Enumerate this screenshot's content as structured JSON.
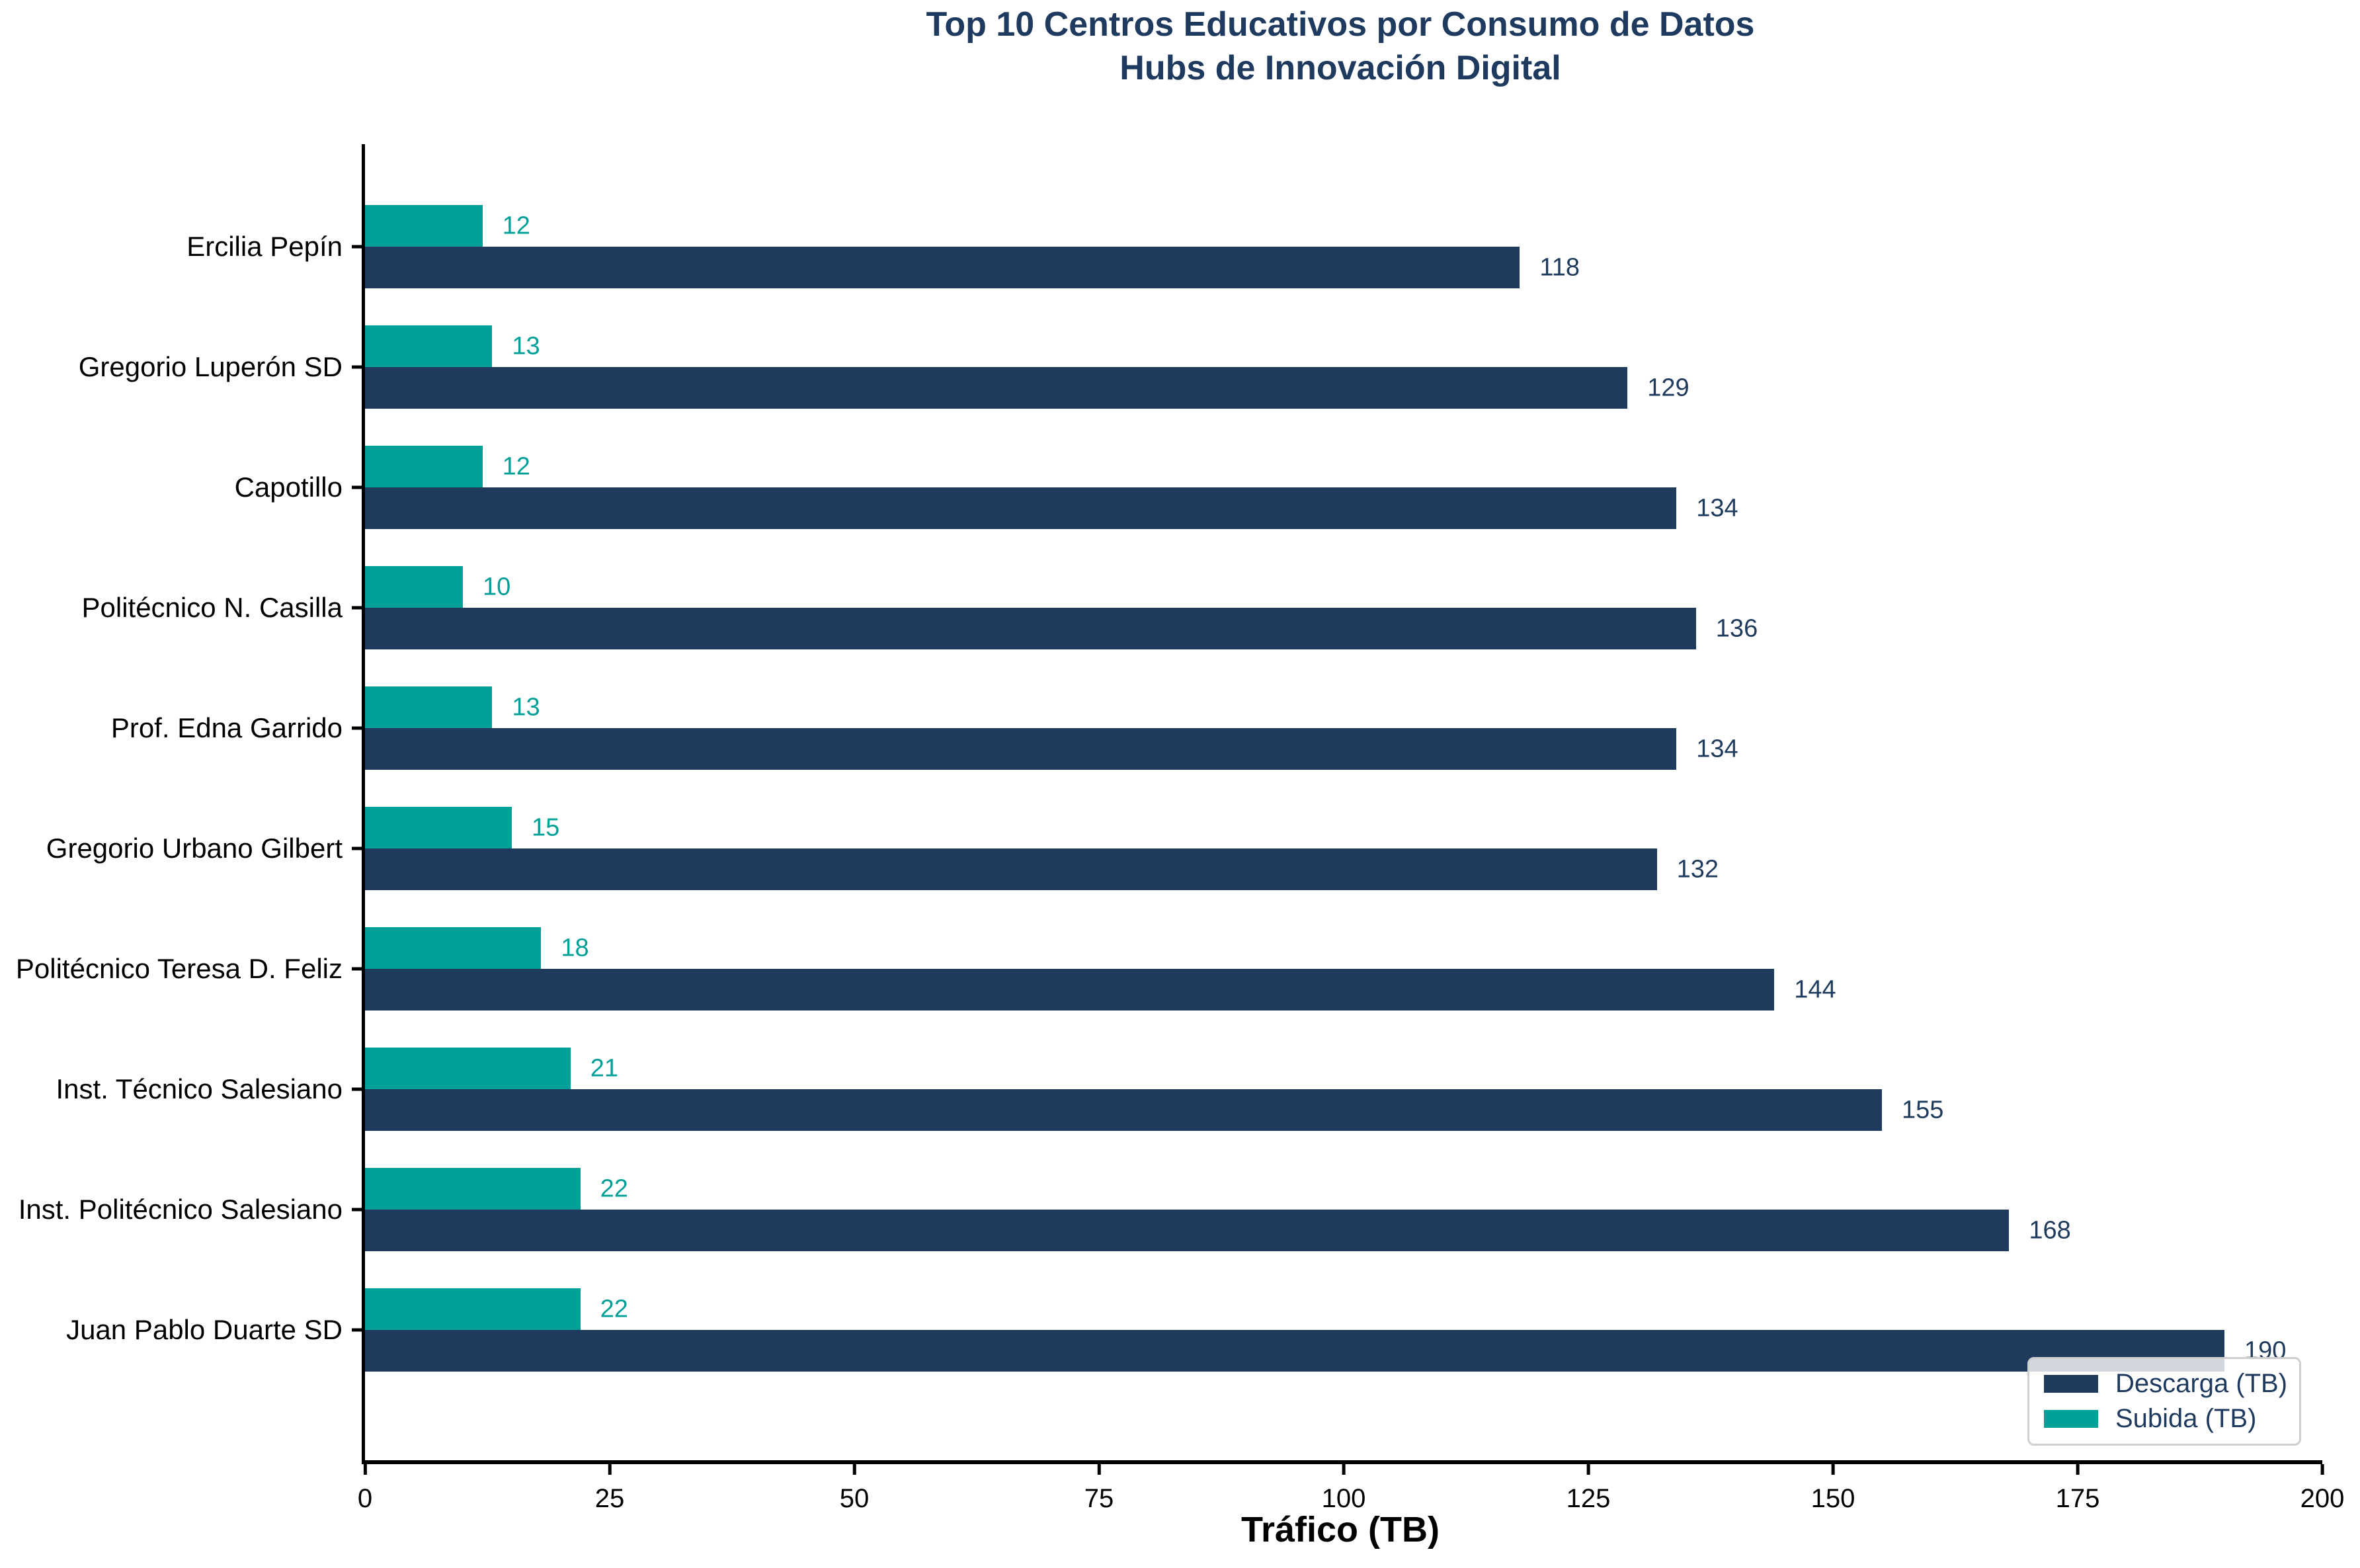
{
  "title": {
    "line1": "Top 10 Centros Educativos por Consumo de Datos",
    "line2": "Hubs de Innovación Digital"
  },
  "colors": {
    "descarga": "#1e3a5c",
    "subida": "#00a098",
    "title_text": "#1f3a5f",
    "legend_text": "#1f3a5f",
    "axis": "#000000",
    "legend_border": "#cfcfcf"
  },
  "x_axis": {
    "label": "Tráfico (TB)",
    "ticks": [
      0,
      25,
      50,
      75,
      100,
      125,
      150,
      175,
      200
    ],
    "max": 200
  },
  "legend": {
    "items": [
      {
        "label": "Descarga (TB)",
        "color_key": "descarga"
      },
      {
        "label": "Subida (TB)",
        "color_key": "subida"
      }
    ]
  },
  "chart_data": {
    "type": "bar",
    "orientation": "horizontal",
    "title": "Top 10 Centros Educativos por Consumo de Datos — Hubs de Innovación Digital",
    "xlabel": "Tráfico (TB)",
    "ylabel": "",
    "xlim": [
      0,
      200
    ],
    "grid": false,
    "legend_position": "lower right",
    "categories": [
      "Ercilia Pepín",
      "Gregorio Luperón SD",
      "Capotillo",
      "Politécnico N. Casilla",
      "Prof. Edna Garrido",
      "Gregorio Urbano Gilbert",
      "Politécnico Teresa D. Feliz",
      "Inst. Técnico Salesiano",
      "Inst. Politécnico Salesiano",
      "Juan Pablo Duarte SD"
    ],
    "series": [
      {
        "name": "Descarga (TB)",
        "color": "#1e3a5c",
        "values": [
          118,
          129,
          134,
          136,
          134,
          132,
          144,
          155,
          168,
          190
        ]
      },
      {
        "name": "Subida (TB)",
        "color": "#00a098",
        "values": [
          12,
          13,
          12,
          10,
          13,
          15,
          18,
          21,
          22,
          22
        ]
      }
    ]
  }
}
